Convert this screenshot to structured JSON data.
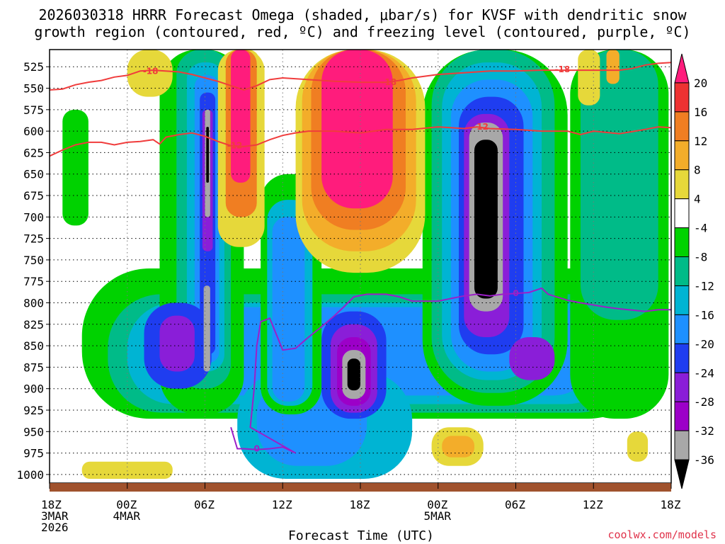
{
  "chart_data": {
    "type": "heatmap",
    "title_lines": [
      "2026030318 HRRR Forecast Omega (shaded, μbar/s) for KVSF with dendritic snow",
      "growth region (contoured, red, ºC) and freezing level (contoured, purple, ºC)"
    ],
    "xlabel": "Forecast Time (UTC)",
    "ylabel": "",
    "credit": "coolwx.com/models",
    "x_range_hours": [
      0,
      48
    ],
    "y_range_mb": [
      505,
      1010
    ],
    "y_ticks": [
      525,
      550,
      575,
      600,
      625,
      650,
      675,
      700,
      725,
      750,
      775,
      800,
      825,
      850,
      875,
      900,
      925,
      950,
      975,
      1000
    ],
    "x_ticks": [
      {
        "h": 0,
        "lines": [
          "18Z",
          "3MAR",
          "2026"
        ]
      },
      {
        "h": 6,
        "lines": [
          "00Z",
          "4MAR"
        ]
      },
      {
        "h": 12,
        "lines": [
          "06Z"
        ]
      },
      {
        "h": 18,
        "lines": [
          "12Z"
        ]
      },
      {
        "h": 24,
        "lines": [
          "18Z"
        ]
      },
      {
        "h": 30,
        "lines": [
          "00Z",
          "5MAR"
        ]
      },
      {
        "h": 36,
        "lines": [
          "06Z"
        ]
      },
      {
        "h": 42,
        "lines": [
          "12Z"
        ]
      },
      {
        "h": 48,
        "lines": [
          "18Z"
        ]
      }
    ],
    "colorbar": {
      "labels": [
        "20",
        "16",
        "12",
        "8",
        "4",
        "-4",
        "-8",
        "-12",
        "-16",
        "-20",
        "-24",
        "-28",
        "-32",
        "-36"
      ],
      "bins": [
        {
          "color": "#ff1c7c"
        },
        {
          "color": "#ee3232"
        },
        {
          "color": "#f07e22"
        },
        {
          "color": "#f3ad2a"
        },
        {
          "color": "#e6d83a"
        },
        {
          "color": "#ffffff"
        },
        {
          "color": "#00d200"
        },
        {
          "color": "#00bb88"
        },
        {
          "color": "#00b4d3"
        },
        {
          "color": "#1e90ff"
        },
        {
          "color": "#1f3df0"
        },
        {
          "color": "#8a1ed8"
        },
        {
          "color": "#9c00c8"
        },
        {
          "color": "#a8a8a8"
        },
        {
          "color": "#000000"
        }
      ]
    },
    "ground_color": "#a0522d",
    "dgz_color": "#f03c3c",
    "freezing_color": "#9c1fc8",
    "omega_features": [
      {
        "name": "green-left-edge",
        "color": "#00d200",
        "h": [
          1.0,
          3.0
        ],
        "p": [
          575,
          710
        ]
      },
      {
        "name": "low-green-band",
        "color": "#00d200",
        "h": [
          2.5,
          46.8
        ],
        "p": [
          760,
          935
        ]
      },
      {
        "name": "low-teal-band",
        "color": "#00bb88",
        "h": [
          4.5,
          45.0
        ],
        "p": [
          790,
          928
        ]
      },
      {
        "name": "low-cyan-band",
        "color": "#00b4d3",
        "h": [
          6.0,
          43.5
        ],
        "p": [
          800,
          918
        ]
      },
      {
        "name": "low-blue-band",
        "color": "#1e90ff",
        "h": [
          7.5,
          42.0
        ],
        "p": [
          805,
          908
        ]
      },
      {
        "name": "lower-cyan-sink",
        "color": "#00b4d3",
        "h": [
          14.5,
          28.0
        ],
        "p": [
          880,
          1005
        ]
      },
      {
        "name": "lower-blue-sink",
        "color": "#1e90ff",
        "h": [
          16.0,
          24.5
        ],
        "p": [
          885,
          990
        ]
      },
      {
        "name": "col1-green",
        "color": "#00d200",
        "h": [
          8.5,
          15.0
        ],
        "p": [
          505,
          930
        ]
      },
      {
        "name": "col1-teal",
        "color": "#00bb88",
        "h": [
          9.8,
          14.0
        ],
        "p": [
          505,
          900
        ]
      },
      {
        "name": "col1-cyan",
        "color": "#00b4d3",
        "h": [
          10.6,
          13.5
        ],
        "p": [
          520,
          880
        ]
      },
      {
        "name": "col1-blue",
        "color": "#1e90ff",
        "h": [
          11.2,
          13.1
        ],
        "p": [
          535,
          870
        ]
      },
      {
        "name": "col1-navy",
        "color": "#1f3df0",
        "h": [
          11.6,
          12.8
        ],
        "p": [
          555,
          860
        ]
      },
      {
        "name": "col1-purple",
        "color": "#8a1ed8",
        "h": [
          11.8,
          12.6
        ],
        "p": [
          575,
          740
        ]
      },
      {
        "name": "col1-gray",
        "color": "#a8a8a8",
        "h": [
          12.0,
          12.4
        ],
        "p": [
          575,
          700
        ]
      },
      {
        "name": "col1-black",
        "color": "#000000",
        "h": [
          12.1,
          12.3
        ],
        "p": [
          595,
          660
        ]
      },
      {
        "name": "left-purple-blob",
        "color": "#1f3df0",
        "h": [
          7.3,
          12.5
        ],
        "p": [
          800,
          900
        ]
      },
      {
        "name": "left-purple-core",
        "color": "#8a1ed8",
        "h": [
          8.5,
          11.2
        ],
        "p": [
          815,
          880
        ]
      },
      {
        "name": "left-gray",
        "color": "#a8a8a8",
        "h": [
          11.9,
          12.4
        ],
        "p": [
          780,
          880
        ]
      },
      {
        "name": "mid-col-green",
        "color": "#00d200",
        "h": [
          16.3,
          21.0
        ],
        "p": [
          650,
          930
        ]
      },
      {
        "name": "mid-col-cyan",
        "color": "#00b4d3",
        "h": [
          16.8,
          20.3
        ],
        "p": [
          680,
          920
        ]
      },
      {
        "name": "mid-col-blue",
        "color": "#1e90ff",
        "h": [
          17.2,
          19.7
        ],
        "p": [
          700,
          915
        ]
      },
      {
        "name": "mid-navy-blob",
        "color": "#1f3df0",
        "h": [
          21.0,
          26.0
        ],
        "p": [
          810,
          935
        ]
      },
      {
        "name": "mid-purple-blob",
        "color": "#8a1ed8",
        "h": [
          21.7,
          25.3
        ],
        "p": [
          825,
          928
        ]
      },
      {
        "name": "mid-deep-purple",
        "color": "#9c00c8",
        "h": [
          22.2,
          24.8
        ],
        "p": [
          840,
          920
        ]
      },
      {
        "name": "mid-gray",
        "color": "#a8a8a8",
        "h": [
          22.6,
          24.4
        ],
        "p": [
          855,
          912
        ]
      },
      {
        "name": "mid-black",
        "color": "#000000",
        "h": [
          23.0,
          24.0
        ],
        "p": [
          865,
          902
        ]
      },
      {
        "name": "col2-green",
        "color": "#00d200",
        "h": [
          28.8,
          40.0
        ],
        "p": [
          505,
          920
        ]
      },
      {
        "name": "col2-teal",
        "color": "#00bb88",
        "h": [
          29.5,
          39.0
        ],
        "p": [
          505,
          905
        ]
      },
      {
        "name": "col2-cyan",
        "color": "#00b4d3",
        "h": [
          30.3,
          38.0
        ],
        "p": [
          520,
          890
        ]
      },
      {
        "name": "col2-blue",
        "color": "#1e90ff",
        "h": [
          31.0,
          37.3
        ],
        "p": [
          540,
          880
        ]
      },
      {
        "name": "col2-navy",
        "color": "#1f3df0",
        "h": [
          31.6,
          36.6
        ],
        "p": [
          560,
          860
        ]
      },
      {
        "name": "col2-purple",
        "color": "#8a1ed8",
        "h": [
          32.0,
          35.5
        ],
        "p": [
          580,
          840
        ]
      },
      {
        "name": "col2-gray",
        "color": "#a8a8a8",
        "h": [
          32.4,
          35.0
        ],
        "p": [
          590,
          810
        ]
      },
      {
        "name": "col2-black",
        "color": "#000000",
        "h": [
          32.8,
          34.6
        ],
        "p": [
          610,
          795
        ]
      },
      {
        "name": "right-purple-blob",
        "color": "#8a1ed8",
        "h": [
          35.5,
          39.0
        ],
        "p": [
          840,
          890
        ]
      },
      {
        "name": "right-green-col",
        "color": "#00d200",
        "h": [
          40.2,
          47.8
        ],
        "p": [
          505,
          935
        ]
      },
      {
        "name": "right-teal-col",
        "color": "#00bb88",
        "h": [
          41.0,
          47.0
        ],
        "p": [
          505,
          820
        ]
      },
      {
        "name": "yellow-top-left",
        "color": "#e6d83a",
        "h": [
          6.0,
          9.5
        ],
        "p": [
          505,
          560
        ]
      },
      {
        "name": "yellow-top-1",
        "color": "#e6d83a",
        "h": [
          14.3,
          16.2
        ],
        "p": [
          505,
          670
        ]
      },
      {
        "name": "pink-col1",
        "color": "#e6d83a",
        "h": [
          13.0,
          16.6
        ],
        "p": [
          505,
          735
        ]
      },
      {
        "name": "pink-col1-orange",
        "color": "#f07e22",
        "h": [
          13.6,
          16.0
        ],
        "p": [
          505,
          700
        ]
      },
      {
        "name": "pink-col1-magenta",
        "color": "#ff1c7c",
        "h": [
          14.0,
          15.5
        ],
        "p": [
          505,
          660
        ]
      },
      {
        "name": "pink-col2",
        "color": "#e6d83a",
        "h": [
          19.0,
          29.0
        ],
        "p": [
          505,
          765
        ]
      },
      {
        "name": "pink-col2-orange",
        "color": "#f3ad2a",
        "h": [
          19.5,
          28.3
        ],
        "p": [
          505,
          740
        ]
      },
      {
        "name": "pink-col2-red",
        "color": "#f07e22",
        "h": [
          20.2,
          27.5
        ],
        "p": [
          505,
          715
        ]
      },
      {
        "name": "pink-col2-magenta",
        "color": "#ff1c7c",
        "h": [
          21.0,
          26.5
        ],
        "p": [
          505,
          690
        ]
      },
      {
        "name": "low-yellow-right",
        "color": "#e6d83a",
        "h": [
          29.5,
          33.5
        ],
        "p": [
          945,
          990
        ]
      },
      {
        "name": "low-orange-right",
        "color": "#f3ad2a",
        "h": [
          30.3,
          32.8
        ],
        "p": [
          955,
          980
        ]
      },
      {
        "name": "low-yellow-far",
        "color": "#e6d83a",
        "h": [
          44.6,
          46.2
        ],
        "p": [
          950,
          985
        ]
      },
      {
        "name": "low-yellow-left",
        "color": "#e6d83a",
        "h": [
          2.5,
          9.5
        ],
        "p": [
          985,
          1005
        ]
      },
      {
        "name": "top-right-yellow",
        "color": "#e6d83a",
        "h": [
          40.8,
          42.5
        ],
        "p": [
          505,
          570
        ]
      },
      {
        "name": "top-right-orange",
        "color": "#f3ad2a",
        "h": [
          43.0,
          44.0
        ],
        "p": [
          505,
          545
        ]
      }
    ],
    "dgz_isotherms": [
      {
        "label": "-18",
        "label_at": [
          [
            7.8,
            530
          ],
          [
            26.2,
            543
          ],
          [
            39.6,
            528
          ]
        ],
        "points": [
          [
            0,
            552
          ],
          [
            1,
            551
          ],
          [
            2,
            546
          ],
          [
            3,
            543
          ],
          [
            4,
            541
          ],
          [
            5,
            537
          ],
          [
            6,
            535
          ],
          [
            7,
            530
          ],
          [
            8,
            529
          ],
          [
            10,
            531
          ],
          [
            11,
            534
          ],
          [
            12,
            538
          ],
          [
            13,
            542
          ],
          [
            14,
            547
          ],
          [
            15,
            552
          ],
          [
            16,
            547
          ],
          [
            17,
            540
          ],
          [
            18,
            538
          ],
          [
            20,
            540
          ],
          [
            22,
            542
          ],
          [
            24,
            543
          ],
          [
            26,
            543
          ],
          [
            27,
            541
          ],
          [
            28,
            538
          ],
          [
            30,
            534
          ],
          [
            32,
            532
          ],
          [
            34,
            530
          ],
          [
            36,
            530
          ],
          [
            38,
            529
          ],
          [
            40,
            529
          ],
          [
            42,
            529
          ],
          [
            44,
            529
          ],
          [
            45,
            527
          ],
          [
            46,
            523
          ],
          [
            47,
            521
          ],
          [
            48,
            520
          ]
        ]
      },
      {
        "label": "-12",
        "label_at": [
          [
            14.3,
            617
          ],
          [
            33.3,
            595
          ]
        ],
        "points": [
          [
            0,
            629
          ],
          [
            1,
            622
          ],
          [
            2,
            616
          ],
          [
            3,
            613
          ],
          [
            4,
            613
          ],
          [
            5,
            616
          ],
          [
            6,
            613
          ],
          [
            7,
            612
          ],
          [
            8,
            610
          ],
          [
            8.5,
            615
          ],
          [
            9,
            607
          ],
          [
            10,
            604
          ],
          [
            11,
            602
          ],
          [
            12,
            606
          ],
          [
            13,
            612
          ],
          [
            14,
            617
          ],
          [
            15,
            618
          ],
          [
            16,
            616
          ],
          [
            17,
            610
          ],
          [
            18,
            605
          ],
          [
            19,
            602
          ],
          [
            20,
            600
          ],
          [
            22,
            600
          ],
          [
            24,
            602
          ],
          [
            26,
            598
          ],
          [
            28,
            598
          ],
          [
            30,
            595
          ],
          [
            32,
            597
          ],
          [
            33,
            595
          ],
          [
            34,
            597
          ],
          [
            36,
            598
          ],
          [
            38,
            600
          ],
          [
            40,
            600
          ],
          [
            41,
            604
          ],
          [
            42,
            600
          ],
          [
            44,
            603
          ],
          [
            46,
            598
          ],
          [
            47,
            595
          ],
          [
            48,
            596
          ]
        ]
      }
    ],
    "freezing_line": {
      "label": "0",
      "label_at": [
        [
          16.0,
          970
        ],
        [
          36.0,
          789
        ]
      ],
      "points": [
        [
          14.0,
          945
        ],
        [
          14.5,
          970
        ],
        [
          15.0,
          970
        ],
        [
          16.0,
          971
        ],
        [
          17.0,
          970
        ],
        [
          18.0,
          968
        ],
        [
          19.0,
          975
        ],
        [
          15.5,
          945
        ],
        [
          15.8,
          900
        ],
        [
          16.0,
          850
        ],
        [
          16.3,
          822
        ],
        [
          17.0,
          818
        ],
        [
          17.6,
          840
        ],
        [
          18.0,
          855
        ],
        [
          19.0,
          853
        ],
        [
          20.0,
          840
        ],
        [
          21.0,
          828
        ],
        [
          22.0,
          815
        ],
        [
          22.7,
          805
        ],
        [
          23.5,
          793
        ],
        [
          24.5,
          790
        ],
        [
          26.0,
          790
        ],
        [
          27.0,
          793
        ],
        [
          28.0,
          798
        ],
        [
          30.0,
          798
        ],
        [
          31.0,
          795
        ],
        [
          32.0,
          792
        ],
        [
          33.0,
          790
        ],
        [
          34.0,
          792
        ],
        [
          35.0,
          790
        ],
        [
          36.0,
          789
        ],
        [
          37.0,
          788
        ],
        [
          38.0,
          783
        ],
        [
          38.5,
          790
        ],
        [
          40.0,
          797
        ],
        [
          41.0,
          800
        ],
        [
          43.0,
          805
        ],
        [
          44.0,
          807
        ],
        [
          46.0,
          810
        ],
        [
          47.0,
          808
        ],
        [
          48.0,
          808
        ]
      ]
    }
  }
}
